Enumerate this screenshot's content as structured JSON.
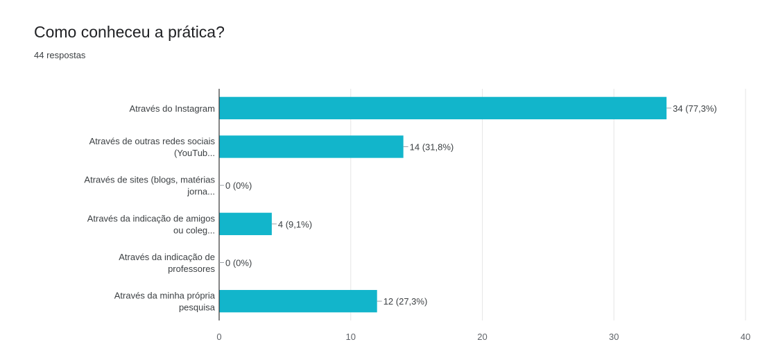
{
  "chart_data": {
    "type": "bar",
    "orientation": "horizontal",
    "title": "Como conheceu a prática?",
    "subtitle": "44 respostas",
    "categories": [
      [
        "Através do Instagram"
      ],
      [
        "Através de outras redes sociais",
        "(YouTub..."
      ],
      [
        "Através de sites (blogs, matérias",
        "jorna..."
      ],
      [
        "Através da indicação de amigos",
        "ou coleg..."
      ],
      [
        "Através da indicação de",
        "professores"
      ],
      [
        "Através da minha própria",
        "pesquisa"
      ]
    ],
    "values": [
      34,
      14,
      0,
      4,
      0,
      12
    ],
    "value_labels": [
      "34 (77,3%)",
      "14 (31,8%)",
      "0 (0%)",
      "4 (9,1%)",
      "0 (0%)",
      "12 (27,3%)"
    ],
    "xlim": [
      0,
      40
    ],
    "xticks": [
      0,
      10,
      20,
      30,
      40
    ],
    "grid": true,
    "bar_color": "#12b5cb"
  }
}
